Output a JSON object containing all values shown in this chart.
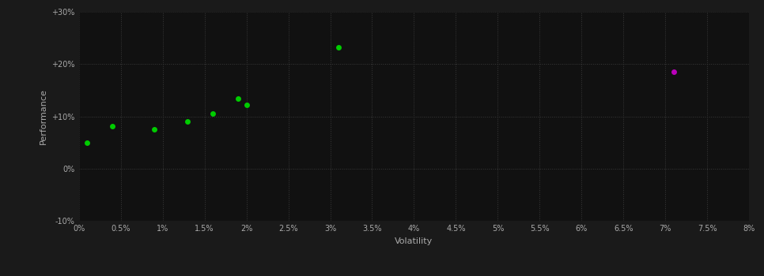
{
  "background_color": "#1a1a1a",
  "plot_bg_color": "#111111",
  "grid_color": "#3a3a3a",
  "text_color": "#aaaaaa",
  "xlabel": "Volatility",
  "ylabel": "Performance",
  "xlim": [
    0.0,
    0.08
  ],
  "ylim": [
    -0.1,
    0.3
  ],
  "green_points": [
    [
      0.001,
      0.05
    ],
    [
      0.004,
      0.082
    ],
    [
      0.009,
      0.075
    ],
    [
      0.013,
      0.091
    ],
    [
      0.016,
      0.105
    ],
    [
      0.019,
      0.135
    ],
    [
      0.02,
      0.122
    ],
    [
      0.031,
      0.232
    ]
  ],
  "magenta_points": [
    [
      0.071,
      0.185
    ]
  ],
  "green_color": "#00cc00",
  "magenta_color": "#bb00bb",
  "marker_size": 5,
  "figwidth": 9.66,
  "figheight": 3.5,
  "dpi": 100
}
